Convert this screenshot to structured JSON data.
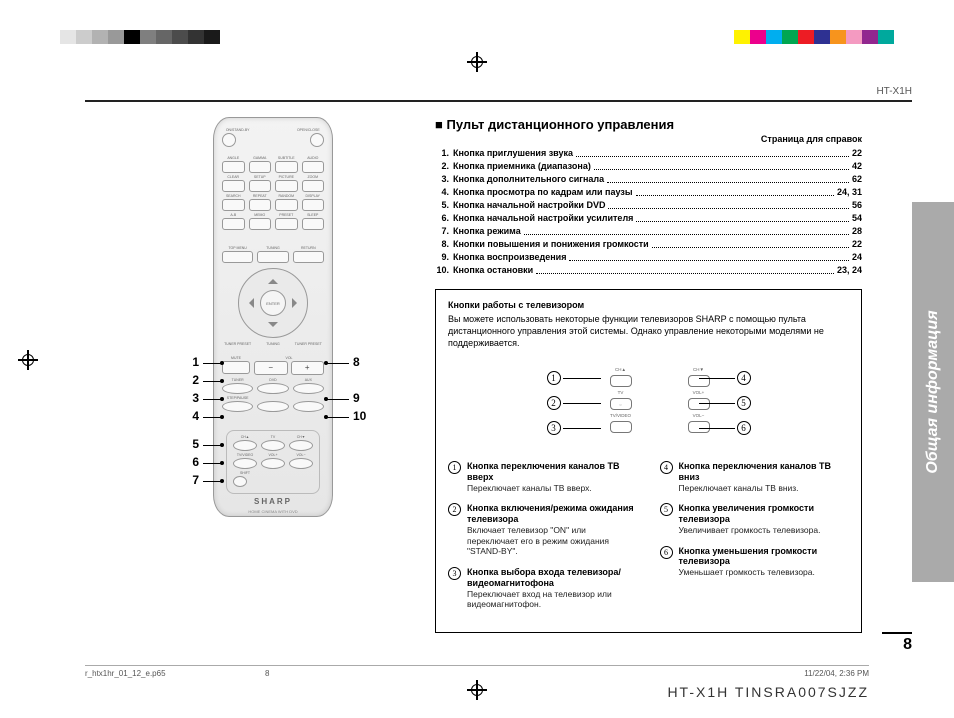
{
  "colors": {
    "side_tab_bg": "#aaaaaa",
    "side_tab_text": "#ffffff",
    "remote_bg_top": "#f3f3f3",
    "remote_bg_bottom": "#e6e6e6",
    "text": "#000000"
  },
  "registration_swatches_left": [
    "#e5e5e5",
    "#cccccc",
    "#b2b2b2",
    "#999999",
    "#000000",
    "#7f7f7f",
    "#666666",
    "#4c4c4c",
    "#333333",
    "#1a1a1a"
  ],
  "registration_swatches_right": [
    "#fff200",
    "#ec008c",
    "#00aeef",
    "#00a651",
    "#ed1c24",
    "#2e3192",
    "#f7941d",
    "#f49ac1",
    "#92278f",
    "#00a99d"
  ],
  "header_model": "HT-X1H",
  "side_tab_label": "Общая информация",
  "section_title": "Пульт дистанционного управления",
  "ref_note": "Страница для справок",
  "toc": [
    {
      "n": "1.",
      "t": "Кнопка приглушения звука",
      "p": "22"
    },
    {
      "n": "2.",
      "t": "Кнопка приемника (диапазона)",
      "p": "42"
    },
    {
      "n": "3.",
      "t": "Кнопка дополнительного сигнала",
      "p": "62"
    },
    {
      "n": "4.",
      "t": "Кнопка просмотра по кадрам или паузы",
      "p": "24, 31"
    },
    {
      "n": "5.",
      "t": "Кнопка начальной настройки DVD",
      "p": "56"
    },
    {
      "n": "6.",
      "t": "Кнопка начальной настройки усилителя",
      "p": "54"
    },
    {
      "n": "7.",
      "t": "Кнопка режима",
      "p": "28"
    },
    {
      "n": "8.",
      "t": "Кнопки повышения и понижения громкости",
      "p": "22"
    },
    {
      "n": "9.",
      "t": "Кнопка воспроизведения",
      "p": "24"
    },
    {
      "n": "10.",
      "t": "Кнопка остановки",
      "p": "23, 24"
    }
  ],
  "tv_box": {
    "header": "Кнопки работы с телевизором",
    "intro": "Вы можете использовать некоторые функции телевизоров SHARP с помощью пульта дистанционного управления этой системы. Однако управление некоторыми моделями не поддерживается.",
    "diagram_numbers_left": [
      "1",
      "2",
      "3"
    ],
    "diagram_numbers_right": [
      "4",
      "5",
      "6"
    ],
    "mini_labels_a": [
      "CH",
      "TV",
      "TV/VIDEO"
    ],
    "mini_labels_b": [
      "CH",
      "VOL",
      "VOL"
    ],
    "items_left": [
      {
        "n": "1",
        "t": "Кнопка переключения каналов ТВ вверх",
        "d": "Переключает каналы ТВ вверх."
      },
      {
        "n": "2",
        "t": "Кнопка включения/режима ожидания телевизора",
        "d": "Включает телевизор \"ON\" или переключает его в режим ожидания \"STAND-BY\"."
      },
      {
        "n": "3",
        "t": "Кнопка выбора входа телевизора/ видеомагнитофона",
        "d": "Переключает вход на телевизор или видеомагнитофон."
      }
    ],
    "items_right": [
      {
        "n": "4",
        "t": "Кнопка переключения каналов ТВ вниз",
        "d": "Переключает каналы ТВ вниз."
      },
      {
        "n": "5",
        "t": "Кнопка увеличения громкости телевизора",
        "d": "Увеличивает громкость телевизора."
      },
      {
        "n": "6",
        "t": "Кнопка уменьшения громкости телевизора",
        "d": "Уменьшает громкость телевизора."
      }
    ]
  },
  "callouts_left": [
    "1",
    "2",
    "3",
    "4",
    "5",
    "6",
    "7"
  ],
  "callouts_right": [
    "8",
    "9",
    "10"
  ],
  "remote": {
    "brand": "SHARP",
    "brand_sub": "HOME CINEMA WITH DVD",
    "dpad_center": "ENTER",
    "vol_labels": [
      "−",
      "+"
    ]
  },
  "page_number": "8",
  "footer": {
    "file": "r_htx1hr_01_12_e.p65",
    "page": "8",
    "timestamp": "11/22/04, 2:36 PM"
  },
  "model_line": "HT-X1H    TINSRA007SJZZ"
}
